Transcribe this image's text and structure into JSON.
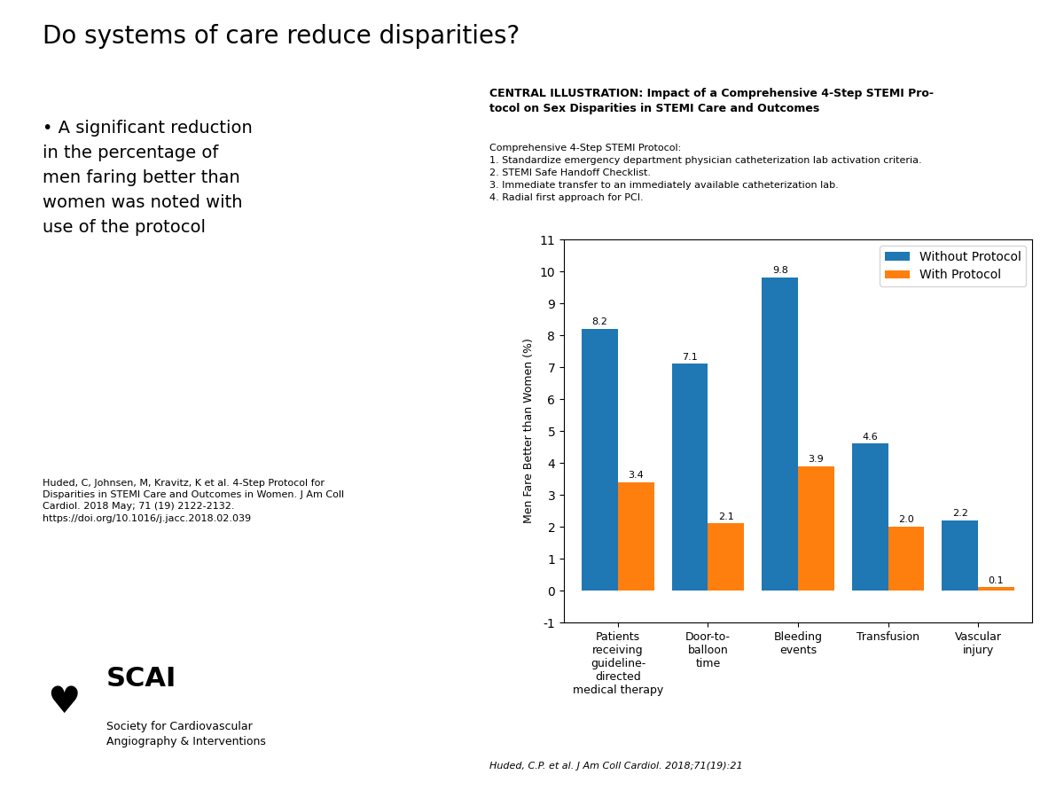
{
  "chart_data": {
    "type": "bar",
    "title": "Do systems of care reduce disparities?",
    "subtitle": "CENTRAL ILLUSTRATION: Impact of a Comprehensive 4-Step STEMI Pro-\ntocol on Sex Disparities in STEMI Care and Outcomes",
    "annotations": [
      "• A significant reduction\nin the percentage of\nmen faring better than\nwomen was noted with\nuse of the protocol",
      "Huded, C, Johnsen, M, Kravitz, K et al. 4-Step Protocol for\nDisparities in STEMI Care and Outcomes in Women. J Am Coll\nCardiol. 2018 May; 71 (19) 2122-2132.\nhttps://doi.org/10.1016/j.jacc.2018.02.039",
      "♥",
      "SCAI",
      "Society for Cardiovascular\nAngiography & Interventions",
      "Comprehensive 4-Step STEMI Protocol:\n1. Standardize emergency department physician catheterization lab activation criteria.\n2. STEMI Safe Handoff Checklist.\n3. Immediate transfer to an immediately available catheterization lab.\n4. Radial first approach for PCI.",
      "Huded, C.P. et al. J Am Coll Cardiol. 2018;71(19):21"
    ],
    "y_label": "Men Fare Better than Women (%)",
    "categories": [
      "Patients\nreceiving\nguideline-\ndirected\nmedical therapy",
      "Door-to-\nballoon\ntime",
      "Bleeding\nevents",
      "Transfusion",
      "Vascular\ninjury"
    ],
    "series": [
      {
        "name": "Without Protocol",
        "values": [
          8.2,
          7.1,
          9.8,
          4.6,
          2.2
        ]
      },
      {
        "name": "With Protocol",
        "values": [
          3.4,
          2.1,
          3.9,
          2.0,
          0.1
        ]
      }
    ],
    "ylim": [
      -1,
      11
    ],
    "yticks": [
      -1,
      0,
      1,
      2,
      3,
      4,
      5,
      6,
      7,
      8,
      9,
      10,
      11
    ],
    "legend": "upper right",
    "data_labels": true
  }
}
